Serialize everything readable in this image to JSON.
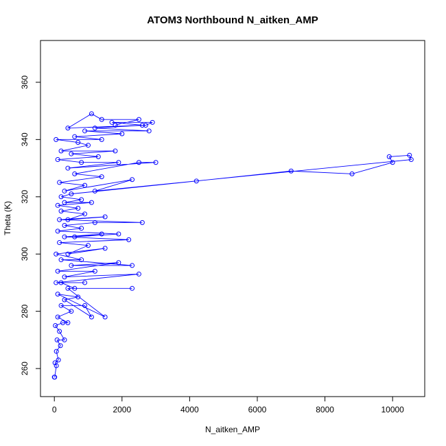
{
  "chart_data": {
    "type": "line",
    "markers": true,
    "title": "ATOM3 Northbound N_aitken_AMP",
    "x_label": "N_aitken_AMP",
    "y_label": "Theta (K)",
    "color": "#0000ff",
    "xlim": [
      -410,
      10950
    ],
    "ylim": [
      250.2,
      374.6
    ],
    "xticks": [
      0,
      2000,
      4000,
      6000,
      8000,
      10000
    ],
    "yticks": [
      260,
      280,
      300,
      320,
      340,
      360
    ],
    "x": [
      0,
      10,
      60,
      20,
      120,
      60,
      180,
      80,
      300,
      150,
      30,
      250,
      400,
      100,
      500,
      200,
      900,
      1100,
      300,
      700,
      100,
      1500,
      400,
      2300,
      600,
      200,
      900,
      50,
      2500,
      300,
      1200,
      100,
      1900,
      500,
      2300,
      200,
      800,
      50,
      1500,
      400,
      1000,
      150,
      2200,
      300,
      1400,
      600,
      1900,
      100,
      800,
      300,
      1200,
      2600,
      150,
      1500,
      400,
      900,
      200,
      700,
      100,
      1100,
      300,
      800,
      200,
      500,
      4200,
      7000,
      8800,
      10000,
      9900,
      10500,
      10550,
      1200,
      2300,
      300,
      900,
      150,
      1400,
      600,
      2500,
      3000,
      400,
      1900,
      800,
      100,
      1300,
      500,
      1800,
      200,
      1000,
      700,
      50,
      1400,
      600,
      2000,
      900,
      2800,
      1200,
      2600,
      1700,
      2900,
      2700,
      400,
      1100,
      1400,
      2500,
      1800
    ],
    "values": [
      257,
      257,
      261,
      262,
      263,
      266,
      268,
      270,
      270,
      273,
      275,
      276,
      276,
      278,
      280,
      282,
      282,
      278,
      284,
      285,
      286,
      278,
      288,
      288,
      288,
      290,
      290,
      290,
      293,
      292,
      294,
      294,
      297,
      296,
      296,
      298,
      298,
      300,
      302,
      300,
      303,
      304,
      305,
      306,
      307,
      306,
      307,
      308,
      309,
      310,
      311,
      311,
      312,
      313,
      312,
      314,
      315,
      316,
      317,
      318,
      318,
      319,
      320,
      321,
      325.5,
      329,
      328,
      332,
      334,
      334.5,
      333,
      322,
      326,
      322,
      324,
      325,
      327,
      328,
      332,
      332,
      330,
      332,
      332,
      333,
      334,
      335,
      336,
      336,
      338,
      339,
      340,
      340,
      341,
      342,
      343,
      343,
      344,
      345,
      346,
      346,
      345,
      344,
      349,
      347,
      347,
      345
    ]
  }
}
